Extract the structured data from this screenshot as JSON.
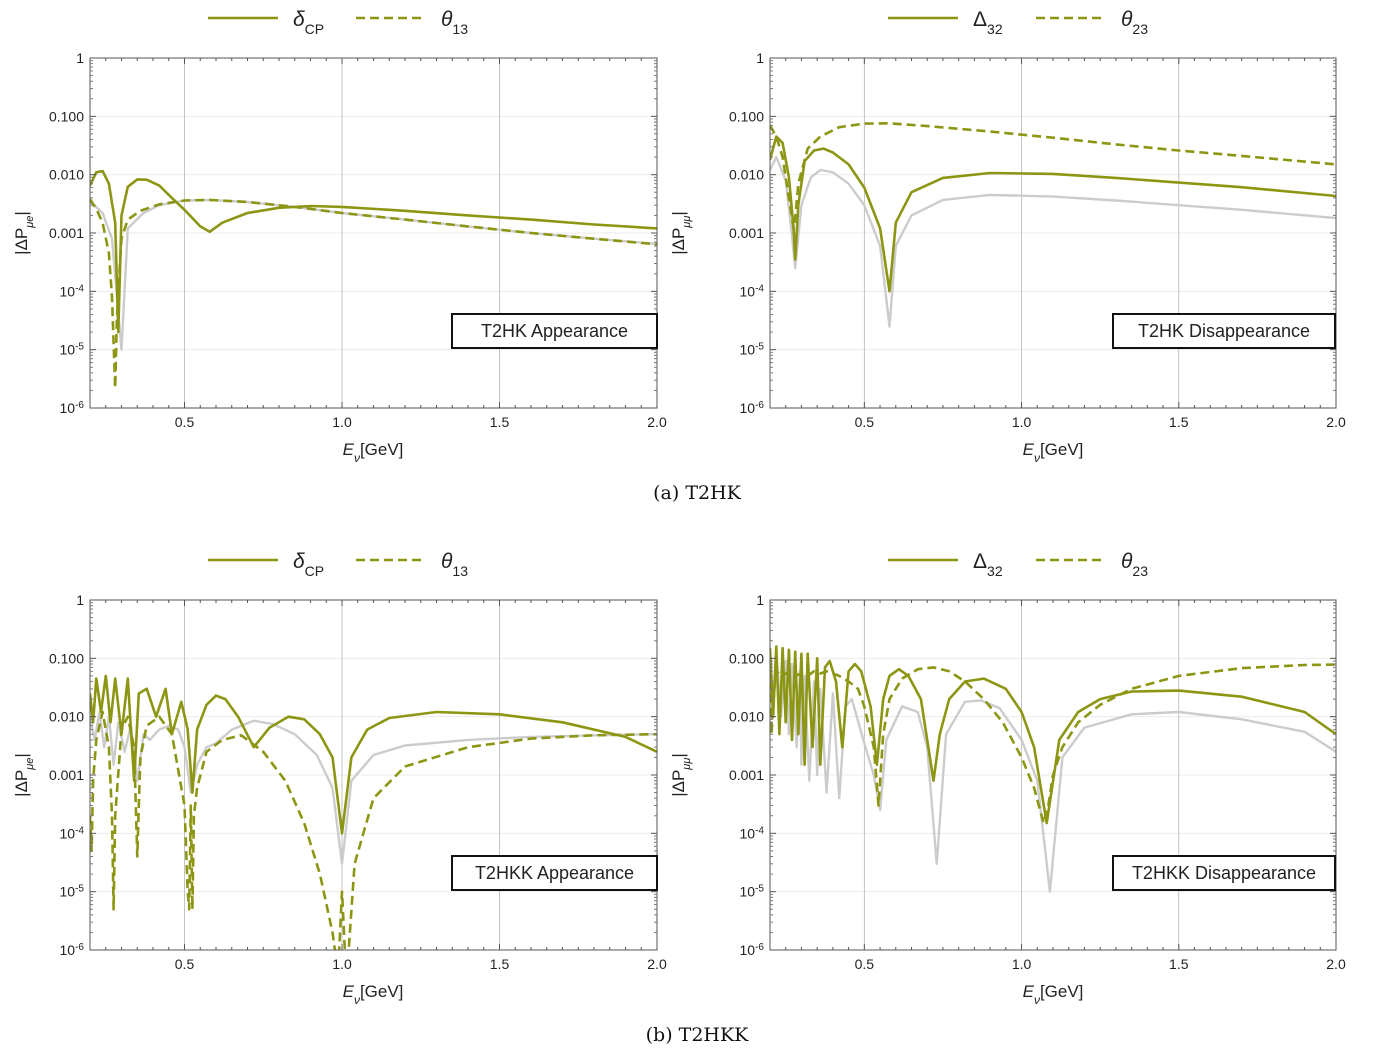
{
  "captions": {
    "a": "(a) T2HK",
    "b": "(b) T2HKK"
  },
  "colors": {
    "main": "#8c9612",
    "reference": "#cccccc",
    "grid": "#b5b5b5",
    "minorgrid": "#ebebeb"
  },
  "chart_data": [
    {
      "id": "t2hk-app",
      "type": "line",
      "scale_y": "log",
      "box_label": "T2HK Appearance",
      "xlabel": {
        "base": "E",
        "sub": "ν",
        "unit": "[GeV]"
      },
      "ylabel": {
        "pre": "|ΔP",
        "sub": "μe",
        "post": "|"
      },
      "xlim": [
        0.2,
        2.0
      ],
      "ylim": [
        1e-06,
        1
      ],
      "xticks": [
        "0.5",
        "1.0",
        "1.5",
        "2.0"
      ],
      "yticks": [
        "10^-6",
        "10^-5",
        "10^-4",
        "0.001",
        "0.010",
        "0.100",
        "1"
      ],
      "legend": [
        {
          "symbol": "δ",
          "sub": "CP",
          "style": "solid"
        },
        {
          "symbol": "θ",
          "sub": "13",
          "style": "dashed"
        }
      ],
      "series": [
        {
          "role": "reference",
          "x": [
            0.2,
            0.24,
            0.27,
            0.3,
            0.32,
            0.37,
            0.42,
            0.5,
            0.58,
            0.7,
            0.85,
            1.0,
            1.2,
            1.4,
            1.6,
            1.8,
            2.0
          ],
          "y": [
            0.0035,
            0.0022,
            0.0008,
            1e-05,
            0.0012,
            0.0022,
            0.003,
            0.0036,
            0.0037,
            0.0034,
            0.0028,
            0.0022,
            0.0017,
            0.0013,
            0.001,
            0.0008,
            0.00065
          ]
        },
        {
          "role": "solid",
          "x": [
            0.2,
            0.22,
            0.24,
            0.26,
            0.28,
            0.29,
            0.3,
            0.32,
            0.35,
            0.38,
            0.42,
            0.46,
            0.5,
            0.55,
            0.58,
            0.62,
            0.7,
            0.8,
            0.9,
            1.0,
            1.2,
            1.4,
            1.6,
            1.8,
            2.0
          ],
          "y": [
            0.0065,
            0.011,
            0.0115,
            0.007,
            0.0015,
            2e-05,
            0.002,
            0.0062,
            0.0083,
            0.0082,
            0.0065,
            0.004,
            0.0025,
            0.0013,
            0.00105,
            0.0015,
            0.0022,
            0.0027,
            0.0029,
            0.0028,
            0.0024,
            0.002,
            0.0017,
            0.0014,
            0.0012
          ]
        },
        {
          "role": "dashed",
          "x": [
            0.2,
            0.22,
            0.24,
            0.26,
            0.27,
            0.28,
            0.285,
            0.29,
            0.3,
            0.32,
            0.36,
            0.42,
            0.5,
            0.58,
            0.7,
            0.85,
            1.0,
            1.2,
            1.4,
            1.6,
            1.8,
            2.0
          ],
          "y": [
            0.0038,
            0.0026,
            0.0015,
            0.00045,
            8e-05,
            2.2e-06,
            3e-05,
            0.0001,
            0.0008,
            0.0017,
            0.0024,
            0.0031,
            0.0036,
            0.0037,
            0.0034,
            0.0028,
            0.0022,
            0.0017,
            0.0013,
            0.001,
            0.0008,
            0.00064
          ]
        }
      ]
    },
    {
      "id": "t2hk-dis",
      "type": "line",
      "scale_y": "log",
      "box_label": "T2HK Disappearance",
      "xlabel": {
        "base": "E",
        "sub": "ν",
        "unit": "[GeV]"
      },
      "ylabel": {
        "pre": "|ΔP",
        "sub": "μμ",
        "post": "|"
      },
      "xlim": [
        0.2,
        2.0
      ],
      "ylim": [
        1e-06,
        1
      ],
      "xticks": [
        "0.5",
        "1.0",
        "1.5",
        "2.0"
      ],
      "yticks": [
        "10^-6",
        "10^-5",
        "10^-4",
        "0.001",
        "0.010",
        "0.100",
        "1"
      ],
      "legend": [
        {
          "symbol": "Δ",
          "sub": "32",
          "style": "solid"
        },
        {
          "symbol": "θ",
          "sub": "23",
          "style": "dashed"
        }
      ],
      "series": [
        {
          "role": "reference",
          "x": [
            0.2,
            0.22,
            0.25,
            0.27,
            0.28,
            0.3,
            0.33,
            0.36,
            0.4,
            0.45,
            0.5,
            0.55,
            0.58,
            0.6,
            0.65,
            0.75,
            0.9,
            1.1,
            1.3,
            1.5,
            1.7,
            2.0
          ],
          "y": [
            0.012,
            0.02,
            0.008,
            0.0009,
            0.00025,
            0.003,
            0.009,
            0.012,
            0.011,
            0.007,
            0.003,
            0.0006,
            2.5e-05,
            0.0006,
            0.002,
            0.0037,
            0.0045,
            0.0042,
            0.0036,
            0.003,
            0.0025,
            0.0018
          ]
        },
        {
          "role": "solid",
          "x": [
            0.2,
            0.22,
            0.24,
            0.26,
            0.275,
            0.28,
            0.29,
            0.31,
            0.34,
            0.37,
            0.4,
            0.45,
            0.5,
            0.55,
            0.58,
            0.6,
            0.65,
            0.75,
            0.9,
            1.1,
            1.3,
            1.5,
            1.7,
            2.0
          ],
          "y": [
            0.018,
            0.045,
            0.035,
            0.009,
            0.0012,
            0.00035,
            0.003,
            0.017,
            0.026,
            0.028,
            0.024,
            0.015,
            0.006,
            0.0012,
            0.0001,
            0.0015,
            0.005,
            0.0088,
            0.0107,
            0.0103,
            0.0088,
            0.0073,
            0.0061,
            0.0043
          ]
        },
        {
          "role": "dashed",
          "x": [
            0.2,
            0.22,
            0.24,
            0.26,
            0.275,
            0.28,
            0.29,
            0.32,
            0.36,
            0.42,
            0.5,
            0.58,
            0.7,
            0.9,
            1.1,
            1.3,
            1.5,
            1.7,
            2.0
          ],
          "y": [
            0.07,
            0.045,
            0.02,
            0.004,
            0.0012,
            0.0018,
            0.007,
            0.028,
            0.045,
            0.065,
            0.075,
            0.076,
            0.068,
            0.055,
            0.043,
            0.033,
            0.026,
            0.021,
            0.015
          ]
        }
      ]
    },
    {
      "id": "t2hkk-app",
      "type": "line",
      "scale_y": "log",
      "box_label": "T2HKK Appearance",
      "xlabel": {
        "base": "E",
        "sub": "ν",
        "unit": "[GeV]"
      },
      "ylabel": {
        "pre": "|ΔP",
        "sub": "μe",
        "post": "|"
      },
      "xlim": [
        0.2,
        2.0
      ],
      "ylim": [
        1e-06,
        1
      ],
      "xticks": [
        "0.5",
        "1.0",
        "1.5",
        "2.0"
      ],
      "yticks": [
        "10^-6",
        "10^-5",
        "10^-4",
        "0.001",
        "0.010",
        "0.100",
        "1"
      ],
      "legend": [
        {
          "symbol": "δ",
          "sub": "CP",
          "style": "solid"
        },
        {
          "symbol": "θ",
          "sub": "13",
          "style": "dashed"
        }
      ],
      "series": [
        {
          "role": "reference",
          "x": [
            0.2,
            0.215,
            0.23,
            0.245,
            0.26,
            0.275,
            0.29,
            0.31,
            0.33,
            0.35,
            0.37,
            0.39,
            0.42,
            0.45,
            0.48,
            0.5,
            0.52,
            0.54,
            0.57,
            0.6,
            0.65,
            0.72,
            0.78,
            0.85,
            0.92,
            0.97,
            1.0,
            1.03,
            1.1,
            1.2,
            1.4,
            1.6,
            1.8,
            2.0
          ],
          "y": [
            0.01,
            0.004,
            0.012,
            0.003,
            0.01,
            0.0015,
            0.008,
            0.0025,
            0.007,
            0.0008,
            0.005,
            0.004,
            0.006,
            0.007,
            0.006,
            0.003,
            0.0005,
            0.0015,
            0.003,
            0.0035,
            0.006,
            0.0085,
            0.0075,
            0.005,
            0.0022,
            0.0006,
            3e-05,
            0.0008,
            0.0022,
            0.0032,
            0.004,
            0.0045,
            0.0048,
            0.005
          ]
        },
        {
          "role": "solid",
          "x": [
            0.2,
            0.21,
            0.22,
            0.235,
            0.25,
            0.265,
            0.28,
            0.3,
            0.32,
            0.34,
            0.355,
            0.38,
            0.41,
            0.44,
            0.46,
            0.49,
            0.51,
            0.525,
            0.54,
            0.57,
            0.6,
            0.63,
            0.67,
            0.72,
            0.77,
            0.83,
            0.88,
            0.93,
            0.97,
            1.0,
            1.03,
            1.08,
            1.15,
            1.3,
            1.5,
            1.7,
            1.9,
            2.0
          ],
          "y": [
            0.025,
            0.008,
            0.045,
            0.012,
            0.05,
            0.008,
            0.045,
            0.005,
            0.045,
            0.0008,
            0.025,
            0.03,
            0.01,
            0.03,
            0.005,
            0.018,
            0.006,
            0.0005,
            0.006,
            0.016,
            0.023,
            0.02,
            0.01,
            0.003,
            0.0065,
            0.01,
            0.009,
            0.005,
            0.002,
            0.0001,
            0.002,
            0.006,
            0.0095,
            0.012,
            0.011,
            0.008,
            0.0045,
            0.0025
          ]
        },
        {
          "role": "dashed",
          "x": [
            0.2,
            0.205,
            0.21,
            0.22,
            0.24,
            0.26,
            0.27,
            0.275,
            0.28,
            0.3,
            0.32,
            0.34,
            0.35,
            0.355,
            0.36,
            0.38,
            0.42,
            0.46,
            0.5,
            0.51,
            0.515,
            0.52,
            0.525,
            0.53,
            0.54,
            0.57,
            0.62,
            0.68,
            0.75,
            0.82,
            0.88,
            0.93,
            0.97,
            0.98,
            0.99,
            1.0,
            1.01,
            1.02,
            1.04,
            1.1,
            1.2,
            1.4,
            1.6,
            1.8,
            2.0
          ],
          "y": [
            0.0002,
            5e-05,
            0.0008,
            0.004,
            0.012,
            0.003,
            0.0002,
            5e-06,
            0.0002,
            0.006,
            0.01,
            0.003,
            4e-05,
            0.0003,
            0.002,
            0.007,
            0.01,
            0.005,
            0.0003,
            1e-05,
            5e-06,
            0.0003,
            5e-06,
            0.0002,
            0.0006,
            0.0025,
            0.004,
            0.0048,
            0.0025,
            0.0008,
            0.00015,
            2e-05,
            2e-06,
            8e-07,
            8e-07,
            1e-05,
            8e-07,
            8e-07,
            3e-05,
            0.0004,
            0.0014,
            0.003,
            0.0042,
            0.0048,
            0.005
          ]
        }
      ]
    },
    {
      "id": "t2hkk-dis",
      "type": "line",
      "scale_y": "log",
      "box_label": "T2HKK Disappearance",
      "xlabel": {
        "base": "E",
        "sub": "ν",
        "unit": "[GeV]"
      },
      "ylabel": {
        "pre": "|ΔP",
        "sub": "μμ",
        "post": "|"
      },
      "xlim": [
        0.2,
        2.0
      ],
      "ylim": [
        1e-06,
        1
      ],
      "xticks": [
        "0.5",
        "1.0",
        "1.5",
        "2.0"
      ],
      "yticks": [
        "10^-6",
        "10^-5",
        "10^-4",
        "0.001",
        "0.010",
        "0.100",
        "1"
      ],
      "legend": [
        {
          "symbol": "Δ",
          "sub": "32",
          "style": "solid"
        },
        {
          "symbol": "θ",
          "sub": "23",
          "style": "dashed"
        }
      ],
      "series": [
        {
          "role": "reference",
          "x": [
            0.2,
            0.21,
            0.22,
            0.235,
            0.25,
            0.26,
            0.27,
            0.285,
            0.295,
            0.3,
            0.31,
            0.325,
            0.34,
            0.35,
            0.36,
            0.38,
            0.4,
            0.42,
            0.44,
            0.46,
            0.5,
            0.53,
            0.55,
            0.57,
            0.62,
            0.67,
            0.7,
            0.73,
            0.76,
            0.82,
            0.87,
            0.93,
            1.0,
            1.05,
            1.09,
            1.13,
            1.2,
            1.35,
            1.5,
            1.7,
            1.9,
            2.0
          ],
          "y": [
            0.12,
            0.02,
            0.12,
            0.01,
            0.09,
            0.005,
            0.08,
            0.003,
            0.06,
            0.0015,
            0.05,
            0.0008,
            0.04,
            0.001,
            0.03,
            0.0005,
            0.025,
            0.0004,
            0.015,
            0.02,
            0.0035,
            0.001,
            0.00025,
            0.004,
            0.015,
            0.012,
            0.003,
            3e-05,
            0.005,
            0.018,
            0.019,
            0.014,
            0.004,
            0.0008,
            1e-05,
            0.002,
            0.0065,
            0.011,
            0.012,
            0.009,
            0.0055,
            0.0025
          ]
        },
        {
          "role": "solid",
          "x": [
            0.2,
            0.21,
            0.22,
            0.23,
            0.24,
            0.25,
            0.26,
            0.27,
            0.28,
            0.29,
            0.3,
            0.31,
            0.32,
            0.335,
            0.35,
            0.36,
            0.375,
            0.39,
            0.41,
            0.43,
            0.45,
            0.47,
            0.49,
            0.52,
            0.54,
            0.56,
            0.58,
            0.61,
            0.64,
            0.68,
            0.72,
            0.74,
            0.77,
            0.82,
            0.88,
            0.95,
            1.0,
            1.04,
            1.08,
            1.12,
            1.18,
            1.25,
            1.35,
            1.5,
            1.7,
            1.9,
            2.0
          ],
          "y": [
            0.15,
            0.01,
            0.16,
            0.005,
            0.15,
            0.008,
            0.14,
            0.004,
            0.13,
            0.005,
            0.12,
            0.0015,
            0.12,
            0.003,
            0.1,
            0.0015,
            0.07,
            0.09,
            0.04,
            0.003,
            0.06,
            0.08,
            0.06,
            0.015,
            0.0015,
            0.02,
            0.05,
            0.065,
            0.05,
            0.02,
            0.0008,
            0.005,
            0.02,
            0.04,
            0.045,
            0.03,
            0.012,
            0.003,
            0.00015,
            0.004,
            0.012,
            0.02,
            0.027,
            0.028,
            0.022,
            0.012,
            0.005
          ]
        },
        {
          "role": "dashed",
          "x": [
            0.2,
            0.205,
            0.21,
            0.22,
            0.24,
            0.26,
            0.28,
            0.3,
            0.32,
            0.34,
            0.36,
            0.38,
            0.4,
            0.42,
            0.45,
            0.48,
            0.5,
            0.53,
            0.545,
            0.56,
            0.58,
            0.62,
            0.67,
            0.72,
            0.77,
            0.82,
            0.88,
            0.94,
            1.0,
            1.04,
            1.07,
            1.085,
            1.1,
            1.13,
            1.18,
            1.25,
            1.35,
            1.5,
            1.7,
            1.9,
            2.0
          ],
          "y": [
            0.13,
            0.005,
            0.02,
            0.06,
            0.05,
            0.06,
            0.05,
            0.055,
            0.05,
            0.06,
            0.055,
            0.06,
            0.055,
            0.05,
            0.04,
            0.03,
            0.015,
            0.003,
            0.0003,
            0.005,
            0.02,
            0.045,
            0.065,
            0.07,
            0.06,
            0.04,
            0.02,
            0.008,
            0.002,
            0.0006,
            0.00015,
            0.0003,
            0.001,
            0.003,
            0.008,
            0.016,
            0.03,
            0.05,
            0.068,
            0.077,
            0.078
          ]
        }
      ]
    }
  ]
}
